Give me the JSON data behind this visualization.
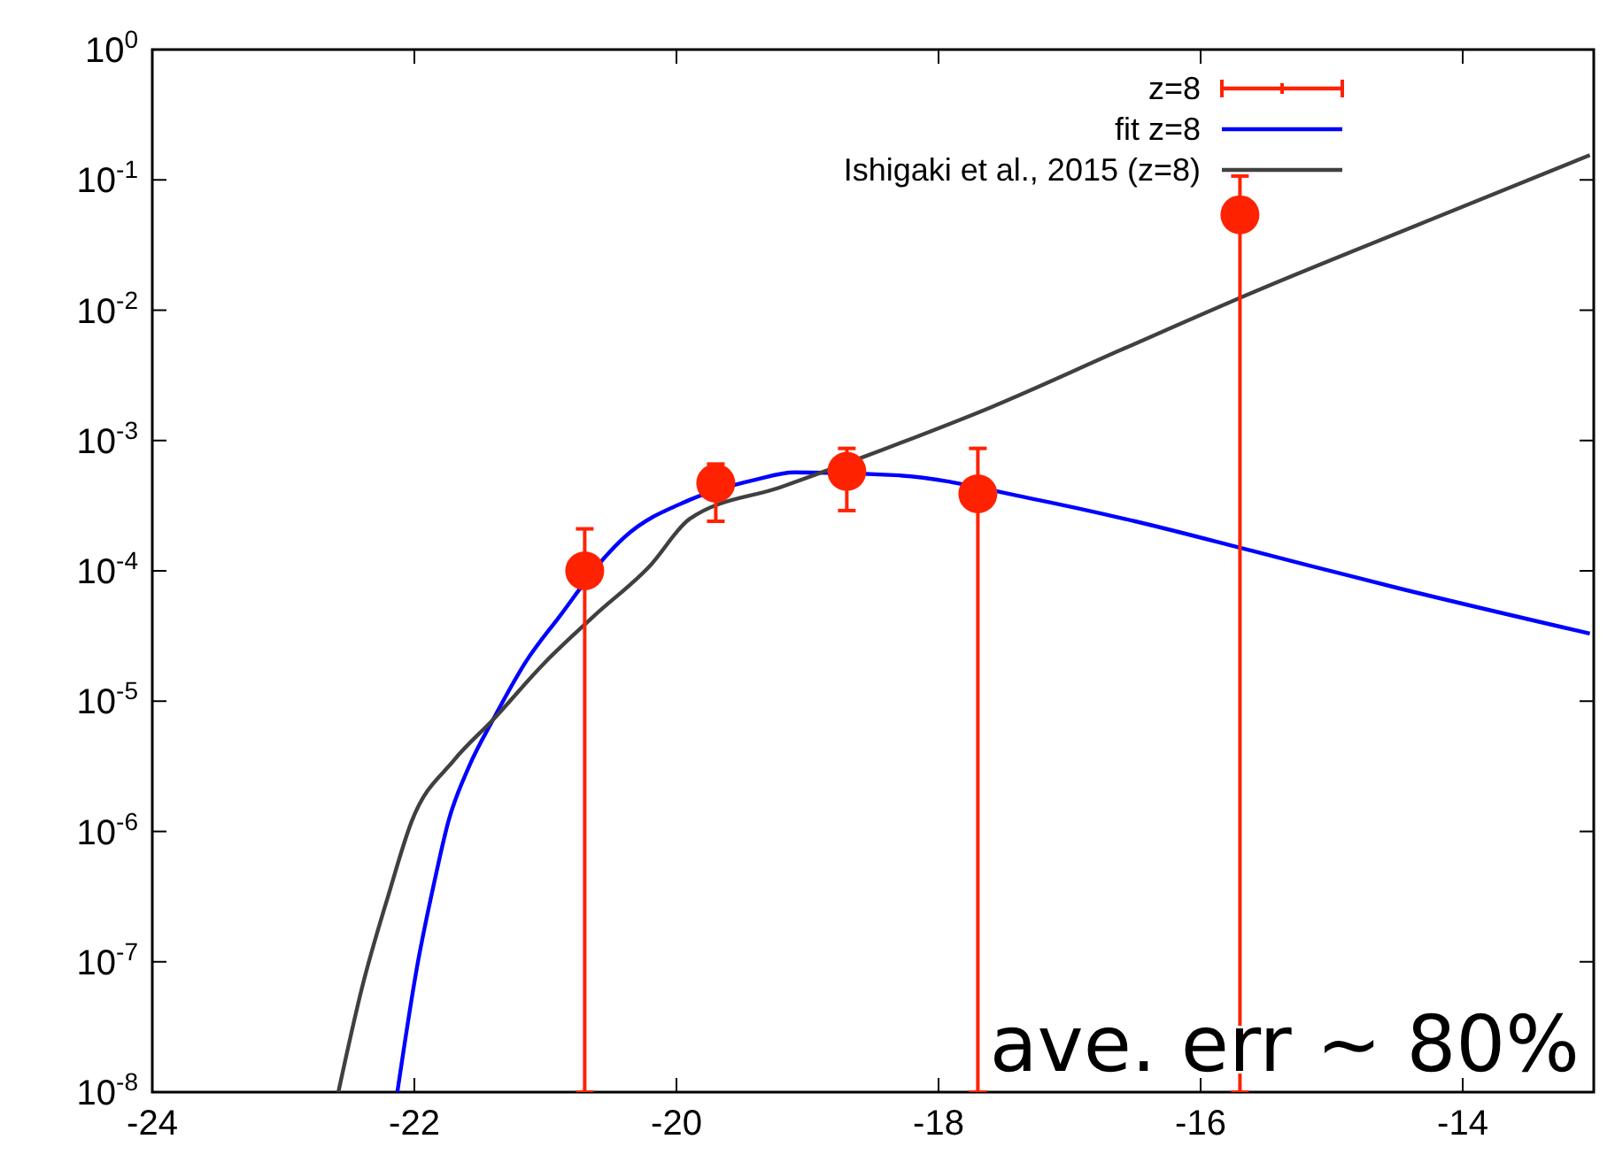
{
  "chart_data": {
    "type": "scatter",
    "log": "y",
    "xlim": [
      -24,
      -13
    ],
    "ylim": [
      1e-08,
      1
    ],
    "xticks": [
      -24,
      -22,
      -20,
      -18,
      -16,
      -14
    ],
    "yticks": [
      {
        "value": 1e-08,
        "label": "10$^{-8}$"
      },
      {
        "value": 1e-07,
        "label": "10$^{-7}$"
      },
      {
        "value": 1e-06,
        "label": "10$^{-6}$"
      },
      {
        "value": 1e-05,
        "label": "10$^{-5}$"
      },
      {
        "value": 0.0001,
        "label": "10$^{-4}$"
      },
      {
        "value": 0.001,
        "label": "10$^{-3}$"
      },
      {
        "value": 0.01,
        "label": "10$^{-2}$"
      },
      {
        "value": 0.1,
        "label": "10$^{-1}$"
      },
      {
        "value": 1,
        "label": "10$^{0}$"
      }
    ],
    "grid": false,
    "legend": "top right",
    "marker": "circle",
    "series": [
      {
        "name": "z=8",
        "color": "#ff2200",
        "x": [
          -20.7,
          -19.7,
          -18.7,
          -17.7,
          -15.7
        ],
        "values": [
          0.0001,
          0.00047,
          0.00058,
          0.00039,
          0.054
        ],
        "errors": [
          [
            1e-08,
            0.00021
          ],
          [
            0.00024,
            0.00066
          ],
          [
            0.00029,
            0.00087
          ],
          [
            1e-08,
            0.00087
          ],
          [
            1e-08,
            0.107
          ]
        ]
      },
      {
        "name": "fit z=8",
        "type": "line",
        "color": "#0000ff",
        "line_style": "solid",
        "marker": "none",
        "x": [
          -22.13,
          -21.98,
          -21.85,
          -21.74,
          -21.58,
          -21.4,
          -21.15,
          -20.89,
          -20.55,
          -20.4,
          -19.9,
          -19.4,
          -19.1,
          -18.3,
          -17.3,
          -16.5,
          -15.58,
          -14.5,
          -13.03
        ],
        "values": [
          1e-08,
          9.1e-08,
          4e-07,
          1.2e-06,
          3.2e-06,
          7.2e-06,
          2e-05,
          4.5e-05,
          0.000126,
          0.00018,
          0.00035,
          0.0005,
          0.00057,
          0.00054,
          0.00036,
          0.00024,
          0.00014,
          7.4e-05,
          3.3e-05
        ]
      },
      {
        "name": "Ishigaki et al., 2015 (z=8)",
        "type": "line",
        "color": "#404040",
        "line_style": "solid",
        "marker": "none",
        "x": [
          -22.58,
          -22.4,
          -22.2,
          -22.02,
          -21.7,
          -21.4,
          -21.0,
          -20.63,
          -20.2,
          -19.9,
          -19.2,
          -18.3,
          -17.6,
          -16.6,
          -15.58,
          -14.3,
          -13.03
        ],
        "values": [
          1e-08,
          6.3e-08,
          3.2e-07,
          1.2e-06,
          3.5e-06,
          7.2e-06,
          2e-05,
          4.5e-05,
          0.00011,
          0.00025,
          0.00044,
          0.00095,
          0.0018,
          0.005,
          0.014,
          0.047,
          0.155
        ]
      }
    ],
    "annotations": [
      "ave. err ~ 80%"
    ]
  }
}
